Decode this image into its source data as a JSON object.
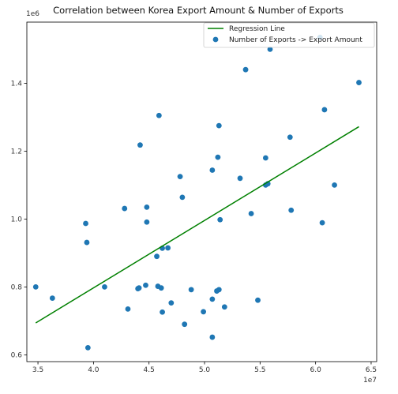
{
  "chart_data": {
    "type": "scatter",
    "title": "Correlation between Korea Export Amount & Number of Exports",
    "xlabel": "",
    "ylabel": "",
    "x_offset_label": "1e7",
    "y_offset_label": "1e6",
    "xlim": [
      34000000,
      65500000
    ],
    "ylim": [
      580000,
      1580000
    ],
    "x_ticks": [
      35000000,
      40000000,
      45000000,
      50000000,
      55000000,
      60000000,
      65000000
    ],
    "x_tick_labels": [
      "3.5",
      "4.0",
      "4.5",
      "5.0",
      "5.5",
      "6.0",
      "6.5"
    ],
    "y_ticks": [
      600000,
      800000,
      1000000,
      1200000,
      1400000
    ],
    "y_tick_labels": [
      "0.6",
      "0.8",
      "1.0",
      "1.2",
      "1.4"
    ],
    "grid": false,
    "legend_position": "top-right",
    "series": [
      {
        "name": "Number of Exports -> Export Amount",
        "kind": "scatter",
        "color": "#1f77b4",
        "points": [
          [
            34800000,
            800000
          ],
          [
            36300000,
            767000
          ],
          [
            39300000,
            987000
          ],
          [
            39400000,
            931000
          ],
          [
            39500000,
            621000
          ],
          [
            41000000,
            800000
          ],
          [
            42800000,
            1031000
          ],
          [
            43100000,
            735000
          ],
          [
            44000000,
            795000
          ],
          [
            44100000,
            797000
          ],
          [
            44200000,
            1218000
          ],
          [
            44700000,
            805000
          ],
          [
            44800000,
            991000
          ],
          [
            44800000,
            1035000
          ],
          [
            45700000,
            890000
          ],
          [
            45800000,
            802000
          ],
          [
            45900000,
            1305000
          ],
          [
            46100000,
            797000
          ],
          [
            46200000,
            914000
          ],
          [
            46200000,
            726000
          ],
          [
            46700000,
            915000
          ],
          [
            47000000,
            753000
          ],
          [
            47800000,
            1125000
          ],
          [
            48000000,
            1064000
          ],
          [
            48200000,
            690000
          ],
          [
            48800000,
            792000
          ],
          [
            49900000,
            727000
          ],
          [
            50700000,
            764000
          ],
          [
            50700000,
            1144000
          ],
          [
            50700000,
            652000
          ],
          [
            51100000,
            788000
          ],
          [
            51200000,
            1182000
          ],
          [
            51300000,
            1275000
          ],
          [
            51300000,
            792000
          ],
          [
            51400000,
            998000
          ],
          [
            51800000,
            741000
          ],
          [
            53200000,
            1120000
          ],
          [
            53700000,
            1440000
          ],
          [
            54200000,
            1016000
          ],
          [
            54800000,
            761000
          ],
          [
            55500000,
            1180000
          ],
          [
            55500000,
            1100000
          ],
          [
            55700000,
            1104000
          ],
          [
            55900000,
            1500000
          ],
          [
            57700000,
            1241000
          ],
          [
            57800000,
            1026000
          ],
          [
            60400000,
            1535000
          ],
          [
            60600000,
            989000
          ],
          [
            60800000,
            1322000
          ],
          [
            61700000,
            1100000
          ],
          [
            63900000,
            1402000
          ]
        ]
      },
      {
        "name": "Regression Line",
        "kind": "line",
        "color": "#008000",
        "points": [
          [
            34800000,
            694000
          ],
          [
            63900000,
            1272000
          ]
        ]
      }
    ]
  }
}
